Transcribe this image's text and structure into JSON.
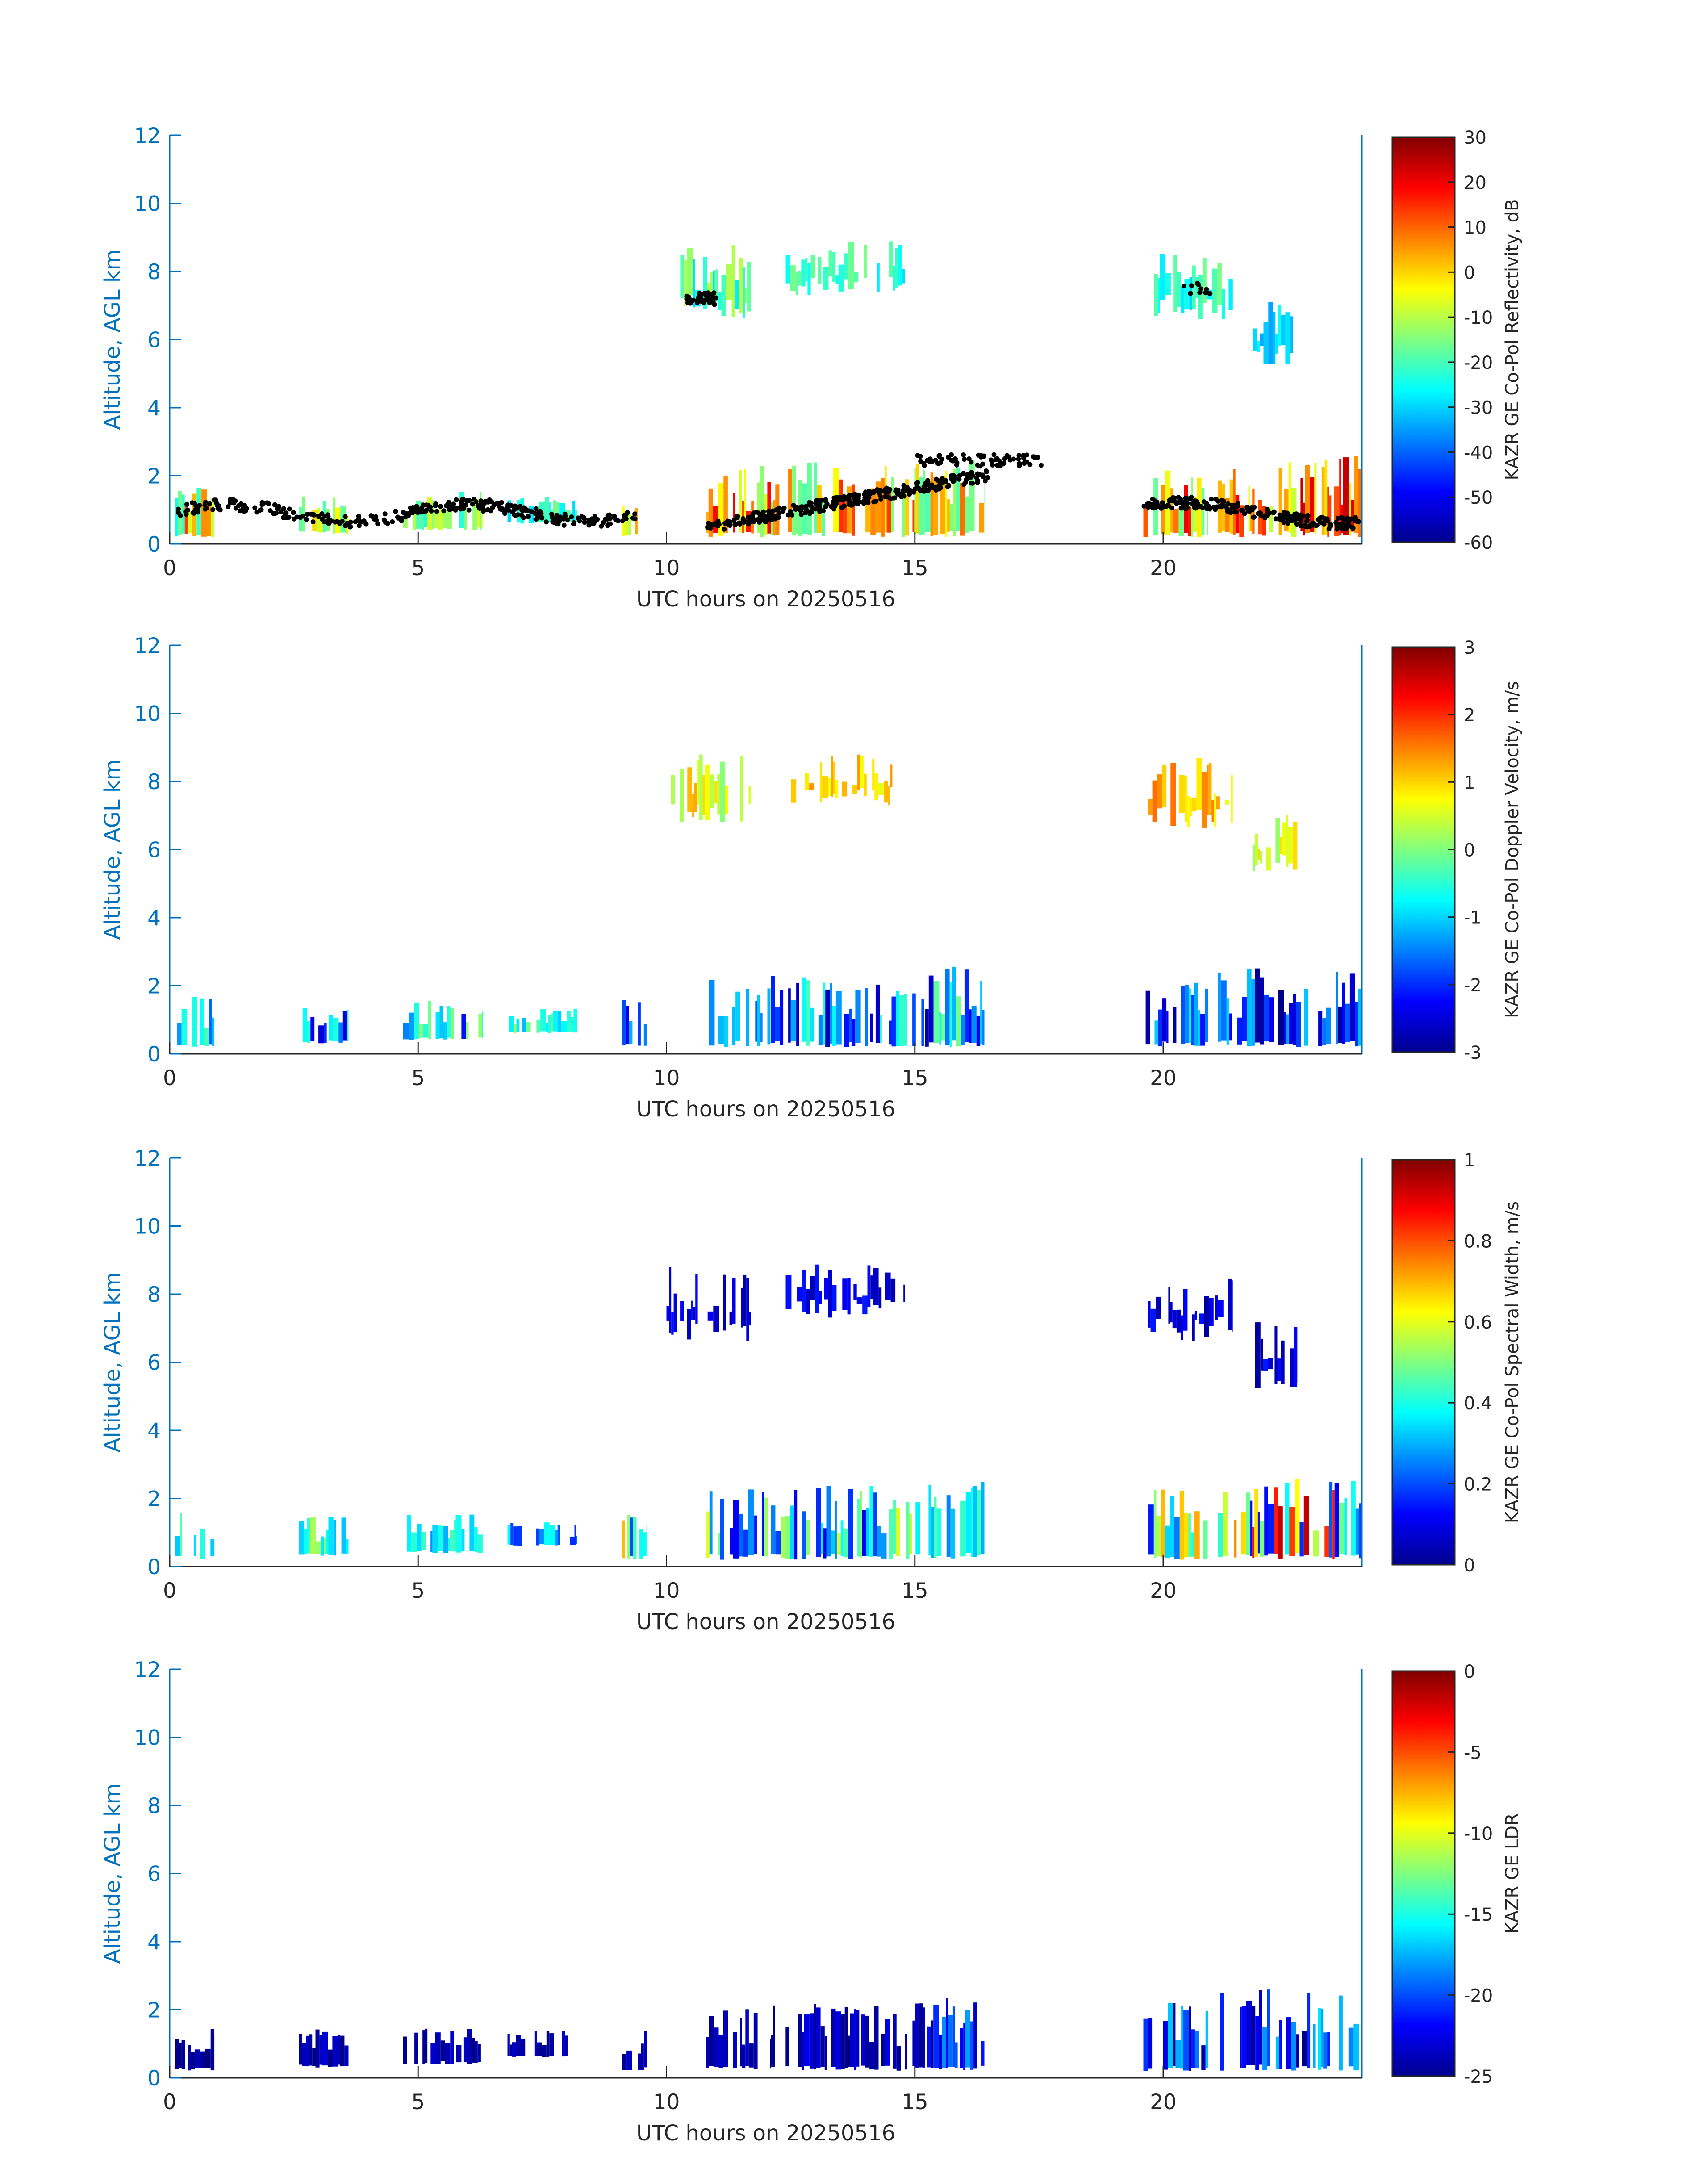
{
  "colors": {
    "axis": "#0072BD",
    "colorbar_frame": "#262626",
    "text": "#262626",
    "background": "#ffffff"
  },
  "colormap": "jet",
  "chart_data": [
    {
      "type": "heatmap",
      "xlabel": "UTC hours on 20250516",
      "ylabel": "Altitude, AGL km",
      "xlim": [
        0,
        24
      ],
      "ylim": [
        0,
        12
      ],
      "xticks": [
        "0",
        "5",
        "10",
        "15",
        "20"
      ],
      "yticks": [
        "0",
        "2",
        "4",
        "6",
        "8",
        "10",
        "12"
      ],
      "colorbar": {
        "label": "KAZR GE Co-Pol Reflectivity, dB",
        "ticks": [
          "-60",
          "-50",
          "-40",
          "-30",
          "-20",
          "-10",
          "0",
          "10",
          "20",
          "30"
        ],
        "range": [
          -60,
          30
        ]
      },
      "overlay": "cloud-base points",
      "grid": false,
      "regions": [
        {
          "t": [
            0.1,
            0.9
          ],
          "z": [
            0.2,
            1.7
          ],
          "v": [
            -25,
            15
          ]
        },
        {
          "t": [
            2.6,
            3.6
          ],
          "z": [
            0.3,
            1.5
          ],
          "v": [
            -20,
            0
          ]
        },
        {
          "t": [
            4.7,
            6.3
          ],
          "z": [
            0.4,
            1.6
          ],
          "v": [
            -25,
            -5
          ]
        },
        {
          "t": [
            6.8,
            8.2
          ],
          "z": [
            0.6,
            1.4
          ],
          "v": [
            -30,
            -15
          ]
        },
        {
          "t": [
            9.1,
            9.6
          ],
          "z": [
            0.2,
            1.6
          ],
          "v": [
            -20,
            5
          ]
        },
        {
          "t": [
            10.8,
            12.1
          ],
          "z": [
            0.2,
            2.3
          ],
          "v": [
            -15,
            20
          ]
        },
        {
          "t": [
            12.1,
            15.2
          ],
          "z": [
            0.2,
            2.4
          ],
          "v": [
            -20,
            15
          ]
        },
        {
          "t": [
            15.2,
            16.4
          ],
          "z": [
            0.2,
            2.6
          ],
          "v": [
            -20,
            10
          ]
        },
        {
          "t": [
            19.6,
            20.9
          ],
          "z": [
            0.2,
            2.3
          ],
          "v": [
            -20,
            20
          ]
        },
        {
          "t": [
            21.1,
            24.0
          ],
          "z": [
            0.2,
            2.6
          ],
          "v": [
            -10,
            25
          ]
        },
        {
          "t": [
            10.0,
            11.7
          ],
          "z": [
            6.6,
            8.8
          ],
          "v": [
            -30,
            -10
          ]
        },
        {
          "t": [
            12.4,
            14.8
          ],
          "z": [
            7.3,
            8.9
          ],
          "v": [
            -30,
            -15
          ]
        },
        {
          "t": [
            19.7,
            21.4
          ],
          "z": [
            6.6,
            8.7
          ],
          "v": [
            -30,
            -15
          ]
        },
        {
          "t": [
            21.8,
            22.7
          ],
          "z": [
            5.2,
            7.2
          ],
          "v": [
            -35,
            -25
          ]
        }
      ]
    },
    {
      "type": "heatmap",
      "xlabel": "UTC hours on 20250516",
      "ylabel": "Altitude, AGL km",
      "xlim": [
        0,
        24
      ],
      "ylim": [
        0,
        12
      ],
      "xticks": [
        "0",
        "5",
        "10",
        "15",
        "20"
      ],
      "yticks": [
        "0",
        "2",
        "4",
        "6",
        "8",
        "10",
        "12"
      ],
      "colorbar": {
        "label": "KAZR GE Co-Pol Doppler Velocity, m/s",
        "ticks": [
          "-3",
          "-2",
          "-1",
          "0",
          "1",
          "2",
          "3"
        ],
        "range": [
          -3,
          3
        ]
      },
      "grid": false,
      "regions": [
        {
          "t": [
            0.1,
            0.9
          ],
          "z": [
            0.2,
            1.7
          ],
          "v": [
            -2.2,
            0.3
          ]
        },
        {
          "t": [
            2.6,
            3.6
          ],
          "z": [
            0.3,
            1.5
          ],
          "v": [
            -2.5,
            -0.5
          ]
        },
        {
          "t": [
            4.7,
            6.3
          ],
          "z": [
            0.4,
            1.6
          ],
          "v": [
            -2.2,
            0.3
          ]
        },
        {
          "t": [
            6.8,
            8.2
          ],
          "z": [
            0.6,
            1.4
          ],
          "v": [
            -1.2,
            0.2
          ]
        },
        {
          "t": [
            9.1,
            9.6
          ],
          "z": [
            0.2,
            1.6
          ],
          "v": [
            -2.8,
            -1.0
          ]
        },
        {
          "t": [
            10.8,
            12.1
          ],
          "z": [
            0.2,
            2.3
          ],
          "v": [
            -2.7,
            -0.5
          ]
        },
        {
          "t": [
            12.1,
            15.2
          ],
          "z": [
            0.2,
            2.4
          ],
          "v": [
            -2.8,
            -0.3
          ]
        },
        {
          "t": [
            15.2,
            16.4
          ],
          "z": [
            0.2,
            2.6
          ],
          "v": [
            -2.9,
            0.2
          ]
        },
        {
          "t": [
            19.6,
            20.9
          ],
          "z": [
            0.2,
            2.3
          ],
          "v": [
            -2.9,
            -0.8
          ]
        },
        {
          "t": [
            21.1,
            24.0
          ],
          "z": [
            0.2,
            2.6
          ],
          "v": [
            -3.0,
            -1.0
          ]
        },
        {
          "t": [
            10.0,
            11.7
          ],
          "z": [
            6.6,
            8.8
          ],
          "v": [
            0.0,
            1.3
          ]
        },
        {
          "t": [
            12.4,
            14.8
          ],
          "z": [
            7.3,
            8.9
          ],
          "v": [
            0.4,
            1.4
          ]
        },
        {
          "t": [
            19.7,
            21.4
          ],
          "z": [
            6.6,
            8.7
          ],
          "v": [
            0.6,
            1.6
          ]
        },
        {
          "t": [
            21.8,
            22.7
          ],
          "z": [
            5.2,
            7.2
          ],
          "v": [
            0.0,
            1.0
          ]
        }
      ]
    },
    {
      "type": "heatmap",
      "xlabel": "UTC hours on 20250516",
      "ylabel": "Altitude, AGL km",
      "xlim": [
        0,
        24
      ],
      "ylim": [
        0,
        12
      ],
      "xticks": [
        "0",
        "5",
        "10",
        "15",
        "20"
      ],
      "yticks": [
        "0",
        "2",
        "4",
        "6",
        "8",
        "10",
        "12"
      ],
      "colorbar": {
        "label": "KAZR GE Co-Pol Spectral Width, m/s",
        "ticks": [
          "0",
          "0.2",
          "0.4",
          "0.6",
          "0.8",
          "1"
        ],
        "range": [
          0,
          1
        ]
      },
      "grid": false,
      "regions": [
        {
          "t": [
            0.1,
            0.9
          ],
          "z": [
            0.2,
            1.7
          ],
          "v": [
            0.15,
            0.55
          ]
        },
        {
          "t": [
            2.6,
            3.6
          ],
          "z": [
            0.3,
            1.5
          ],
          "v": [
            0.2,
            0.55
          ]
        },
        {
          "t": [
            4.7,
            6.3
          ],
          "z": [
            0.4,
            1.6
          ],
          "v": [
            0.15,
            0.5
          ]
        },
        {
          "t": [
            6.8,
            8.2
          ],
          "z": [
            0.6,
            1.4
          ],
          "v": [
            0.15,
            0.4
          ]
        },
        {
          "t": [
            9.1,
            9.6
          ],
          "z": [
            0.2,
            1.6
          ],
          "v": [
            0.2,
            0.7
          ]
        },
        {
          "t": [
            10.8,
            12.1
          ],
          "z": [
            0.2,
            2.3
          ],
          "v": [
            0.1,
            0.6
          ]
        },
        {
          "t": [
            12.1,
            15.2
          ],
          "z": [
            0.2,
            2.4
          ],
          "v": [
            0.1,
            0.6
          ]
        },
        {
          "t": [
            15.2,
            16.4
          ],
          "z": [
            0.2,
            2.6
          ],
          "v": [
            0.1,
            0.45
          ]
        },
        {
          "t": [
            19.6,
            20.9
          ],
          "z": [
            0.2,
            2.3
          ],
          "v": [
            0.1,
            0.8
          ]
        },
        {
          "t": [
            21.1,
            24.0
          ],
          "z": [
            0.2,
            2.6
          ],
          "v": [
            0.1,
            0.95
          ]
        },
        {
          "t": [
            10.0,
            11.7
          ],
          "z": [
            6.6,
            8.8
          ],
          "v": [
            0.03,
            0.15
          ]
        },
        {
          "t": [
            12.4,
            14.8
          ],
          "z": [
            7.3,
            8.9
          ],
          "v": [
            0.03,
            0.15
          ]
        },
        {
          "t": [
            19.7,
            21.4
          ],
          "z": [
            6.6,
            8.7
          ],
          "v": [
            0.03,
            0.15
          ]
        },
        {
          "t": [
            21.8,
            22.7
          ],
          "z": [
            5.2,
            7.2
          ],
          "v": [
            0.03,
            0.15
          ]
        }
      ]
    },
    {
      "type": "heatmap",
      "xlabel": "UTC hours on 20250516",
      "ylabel": "Altitude, AGL km",
      "xlim": [
        0,
        24
      ],
      "ylim": [
        0,
        12
      ],
      "xticks": [
        "0",
        "5",
        "10",
        "15",
        "20"
      ],
      "yticks": [
        "0",
        "2",
        "4",
        "6",
        "8",
        "10",
        "12"
      ],
      "colorbar": {
        "label": "KAZR GE LDR",
        "ticks": [
          "-25",
          "-20",
          "-15",
          "-10",
          "-5",
          "0"
        ],
        "range": [
          -25,
          0
        ]
      },
      "grid": false,
      "regions": [
        {
          "t": [
            0.1,
            0.9
          ],
          "z": [
            0.2,
            1.7
          ],
          "v": [
            -25,
            -23
          ]
        },
        {
          "t": [
            2.6,
            3.6
          ],
          "z": [
            0.3,
            1.5
          ],
          "v": [
            -25,
            -23
          ]
        },
        {
          "t": [
            4.7,
            6.3
          ],
          "z": [
            0.4,
            1.6
          ],
          "v": [
            -25,
            -23
          ]
        },
        {
          "t": [
            6.8,
            8.2
          ],
          "z": [
            0.6,
            1.4
          ],
          "v": [
            -25,
            -23
          ]
        },
        {
          "t": [
            9.1,
            9.6
          ],
          "z": [
            0.2,
            1.6
          ],
          "v": [
            -25,
            -23
          ]
        },
        {
          "t": [
            10.8,
            12.1
          ],
          "z": [
            0.2,
            2.1
          ],
          "v": [
            -25,
            -23
          ]
        },
        {
          "t": [
            12.1,
            15.2
          ],
          "z": [
            0.2,
            2.2
          ],
          "v": [
            -25,
            -22
          ]
        },
        {
          "t": [
            15.2,
            16.4
          ],
          "z": [
            0.2,
            2.5
          ],
          "v": [
            -25,
            -18
          ]
        },
        {
          "t": [
            19.6,
            20.9
          ],
          "z": [
            0.2,
            2.3
          ],
          "v": [
            -25,
            -17
          ]
        },
        {
          "t": [
            21.1,
            24.0
          ],
          "z": [
            0.2,
            2.6
          ],
          "v": [
            -25,
            -16
          ]
        }
      ]
    }
  ]
}
